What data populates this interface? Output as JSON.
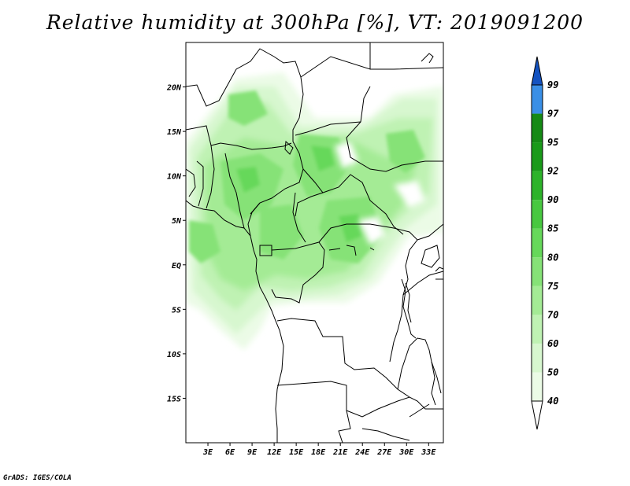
{
  "header": {
    "title": "Relative humidity at 300hPa [%], VT: 2019091200"
  },
  "footer": {
    "credit": "GrADS: IGES/COLA"
  },
  "map": {
    "lon_range": [
      0,
      35
    ],
    "lat_range": [
      -20,
      25
    ],
    "lat_ticks": [
      {
        "value": 20,
        "label": "20N"
      },
      {
        "value": 15,
        "label": "15N"
      },
      {
        "value": 10,
        "label": "10N"
      },
      {
        "value": 5,
        "label": "5N"
      },
      {
        "value": 0,
        "label": "EQ"
      },
      {
        "value": -5,
        "label": "5S"
      },
      {
        "value": -10,
        "label": "10S"
      },
      {
        "value": -15,
        "label": "15S"
      }
    ],
    "lon_ticks": [
      {
        "value": 3,
        "label": "3E"
      },
      {
        "value": 6,
        "label": "6E"
      },
      {
        "value": 9,
        "label": "9E"
      },
      {
        "value": 12,
        "label": "12E"
      },
      {
        "value": 15,
        "label": "15E"
      },
      {
        "value": 18,
        "label": "18E"
      },
      {
        "value": 21,
        "label": "21E"
      },
      {
        "value": 24,
        "label": "24E"
      },
      {
        "value": 27,
        "label": "27E"
      },
      {
        "value": 30,
        "label": "30E"
      },
      {
        "value": 33,
        "label": "33E"
      }
    ]
  },
  "colorbar": {
    "levels": [
      {
        "label": "40",
        "color": "#ebfbe6"
      },
      {
        "label": "50",
        "color": "#d7f7cf"
      },
      {
        "label": "60",
        "color": "#bff2b3"
      },
      {
        "label": "70",
        "color": "#a4eb95"
      },
      {
        "label": "75",
        "color": "#86e277"
      },
      {
        "label": "80",
        "color": "#66d85a"
      },
      {
        "label": "85",
        "color": "#48c840"
      },
      {
        "label": "90",
        "color": "#2db32a"
      },
      {
        "label": "92",
        "color": "#1a9a1a"
      },
      {
        "label": "95",
        "color": "#168a16"
      },
      {
        "label": "97",
        "color": "#3a8fe6"
      },
      {
        "label": "99",
        "color": "#1e6ad8"
      }
    ],
    "top_color": "#1452c0",
    "bottom_color": "#ffffff"
  }
}
